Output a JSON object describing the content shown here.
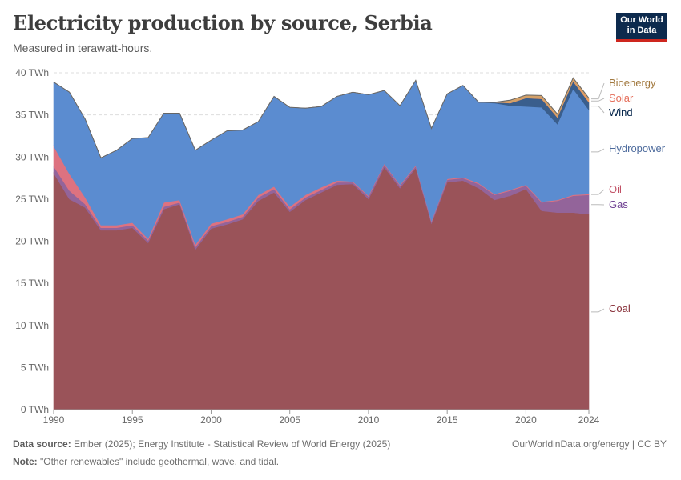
{
  "header": {
    "title": "Electricity production by source, Serbia",
    "subtitle": "Measured in terawatt-hours.",
    "logo_line1": "Our World",
    "logo_line2": "in Data"
  },
  "footer": {
    "source_label": "Data source:",
    "source_text": " Ember (2025); Energy Institute - Statistical Review of World Energy (2025)",
    "note_label": "Note:",
    "note_text": " \"Other renewables\" include geothermal, wave, and tidal.",
    "credit": "OurWorldinData.org/energy | CC BY"
  },
  "chart_data": {
    "type": "area",
    "stacked": true,
    "title": "Electricity production by source, Serbia",
    "subtitle": "Measured in terawatt-hours.",
    "y_unit": "TWh",
    "ylim": [
      0,
      40
    ],
    "yticks": [
      0,
      5,
      10,
      15,
      20,
      25,
      30,
      35,
      40
    ],
    "ytick_labels": [
      "0 TWh",
      "5 TWh",
      "10 TWh",
      "15 TWh",
      "20 TWh",
      "25 TWh",
      "30 TWh",
      "35 TWh",
      "40 TWh"
    ],
    "xlim": [
      1990,
      2024
    ],
    "xticks": [
      1990,
      1995,
      2000,
      2005,
      2010,
      2015,
      2020,
      2024
    ],
    "grid": "horizontal",
    "legend_position": "right",
    "x": [
      1990,
      1991,
      1992,
      1993,
      1994,
      1995,
      1996,
      1997,
      1998,
      1999,
      2000,
      2001,
      2002,
      2003,
      2004,
      2005,
      2006,
      2007,
      2008,
      2009,
      2010,
      2011,
      2012,
      2013,
      2014,
      2015,
      2016,
      2017,
      2018,
      2019,
      2020,
      2021,
      2022,
      2023,
      2024
    ],
    "series": [
      {
        "name": "Coal",
        "color": "#9a5359",
        "label_color": "#883039",
        "values": [
          28.1,
          25.0,
          24.0,
          21.3,
          21.3,
          21.6,
          19.8,
          23.8,
          24.4,
          19.0,
          21.5,
          22.0,
          22.6,
          24.8,
          25.8,
          23.5,
          24.9,
          25.8,
          26.7,
          26.8,
          25.0,
          28.8,
          26.3,
          28.7,
          22.1,
          27.0,
          27.2,
          26.3,
          24.9,
          25.4,
          26.2,
          23.6,
          23.4,
          23.4,
          23.2
        ]
      },
      {
        "name": "Gas",
        "color": "#93649a",
        "label_color": "#6d3e91",
        "values": [
          0.8,
          1.0,
          0.4,
          0.3,
          0.3,
          0.3,
          0.3,
          0.3,
          0.2,
          0.3,
          0.3,
          0.3,
          0.3,
          0.4,
          0.4,
          0.3,
          0.3,
          0.3,
          0.3,
          0.2,
          0.3,
          0.3,
          0.3,
          0.2,
          0.2,
          0.3,
          0.3,
          0.5,
          0.6,
          0.6,
          0.4,
          1.0,
          1.4,
          2.0,
          2.3
        ]
      },
      {
        "name": "Oil",
        "color": "#dd7280",
        "label_color": "#c15065",
        "values": [
          2.4,
          2.0,
          0.8,
          0.3,
          0.3,
          0.3,
          0.2,
          0.5,
          0.3,
          0.3,
          0.3,
          0.3,
          0.3,
          0.3,
          0.3,
          0.3,
          0.3,
          0.3,
          0.2,
          0.1,
          0.1,
          0.1,
          0.1,
          0.1,
          0.1,
          0.1,
          0.1,
          0.1,
          0.1,
          0.1,
          0.1,
          0.1,
          0.1,
          0.1,
          0.1
        ]
      },
      {
        "name": "Hydropower",
        "color": "#5b8cd0",
        "label_color": "#4c6a9c",
        "values": [
          7.6,
          9.7,
          9.3,
          8.0,
          8.9,
          10.0,
          12.0,
          10.6,
          10.3,
          11.2,
          9.9,
          10.5,
          10.0,
          8.7,
          10.7,
          11.8,
          10.3,
          9.6,
          10.0,
          10.6,
          12.0,
          8.7,
          9.4,
          10.1,
          11.0,
          10.1,
          10.9,
          9.6,
          10.8,
          10.0,
          9.3,
          11.2,
          9.0,
          12.6,
          10.0
        ]
      },
      {
        "name": "Wind",
        "color": "#3a5e8c",
        "label_color": "#002147",
        "values": [
          0,
          0,
          0,
          0,
          0,
          0,
          0,
          0,
          0,
          0,
          0,
          0,
          0,
          0,
          0,
          0,
          0,
          0,
          0,
          0,
          0,
          0,
          0,
          0,
          0,
          0,
          0,
          0,
          0.1,
          0.3,
          1.0,
          1.0,
          0.8,
          0.9,
          0.9
        ]
      },
      {
        "name": "Solar",
        "color": "#ed9a5f",
        "label_color": "#e56e5a",
        "values": [
          0,
          0,
          0,
          0,
          0,
          0,
          0,
          0,
          0,
          0,
          0,
          0,
          0,
          0,
          0,
          0,
          0,
          0,
          0,
          0,
          0,
          0,
          0,
          0,
          0,
          0,
          0,
          0,
          0,
          0.05,
          0.05,
          0.1,
          0.1,
          0.1,
          0.3
        ]
      },
      {
        "name": "Bioenergy",
        "color": "#d4a168",
        "label_color": "#a2793f",
        "values": [
          0,
          0,
          0,
          0,
          0,
          0,
          0,
          0,
          0,
          0,
          0,
          0,
          0,
          0,
          0,
          0,
          0,
          0,
          0,
          0,
          0,
          0,
          0,
          0,
          0,
          0,
          0,
          0,
          0,
          0.3,
          0.3,
          0.3,
          0.3,
          0.3,
          0.2
        ]
      }
    ]
  }
}
